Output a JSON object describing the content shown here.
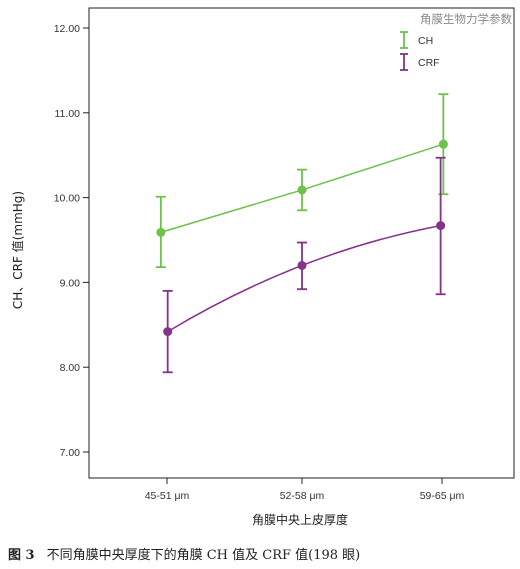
{
  "chart_data": {
    "type": "line",
    "categories": [
      "45-51 μm",
      "52-58 μm",
      "59-65 μm"
    ],
    "xlabel": "角膜中央上皮厚度",
    "ylabel": "CH、CRF 值(mmHg)",
    "ylim": [
      6.8,
      12.3
    ],
    "yticks": [
      7.0,
      8.0,
      9.0,
      10.0,
      11.0,
      12.0
    ],
    "ytick_labels": [
      "7.00",
      "8.00",
      "9.00",
      "10.00",
      "11.00",
      "12.00"
    ],
    "legend_title": "角膜生物力学参数",
    "legend_position": "top-right",
    "series": [
      {
        "name": "CH",
        "color": "#6cc24a",
        "x_offset": [
          -0.45,
          0,
          0.1
        ],
        "values": [
          9.59,
          10.09,
          10.63
        ],
        "err_low": [
          9.18,
          9.85,
          10.04
        ],
        "err_high": [
          10.01,
          10.33,
          11.22
        ]
      },
      {
        "name": "CRF",
        "color": "#86318a",
        "x_offset": [
          0.05,
          0,
          -0.1
        ],
        "values": [
          8.42,
          9.2,
          9.67
        ],
        "err_low": [
          7.94,
          8.92,
          8.86
        ],
        "err_high": [
          8.9,
          9.47,
          10.47
        ]
      }
    ]
  },
  "caption": {
    "figure_label": "图 3",
    "text": "不同角膜中央厚度下的角膜 CH 值及 CRF 值(198 眼)"
  }
}
